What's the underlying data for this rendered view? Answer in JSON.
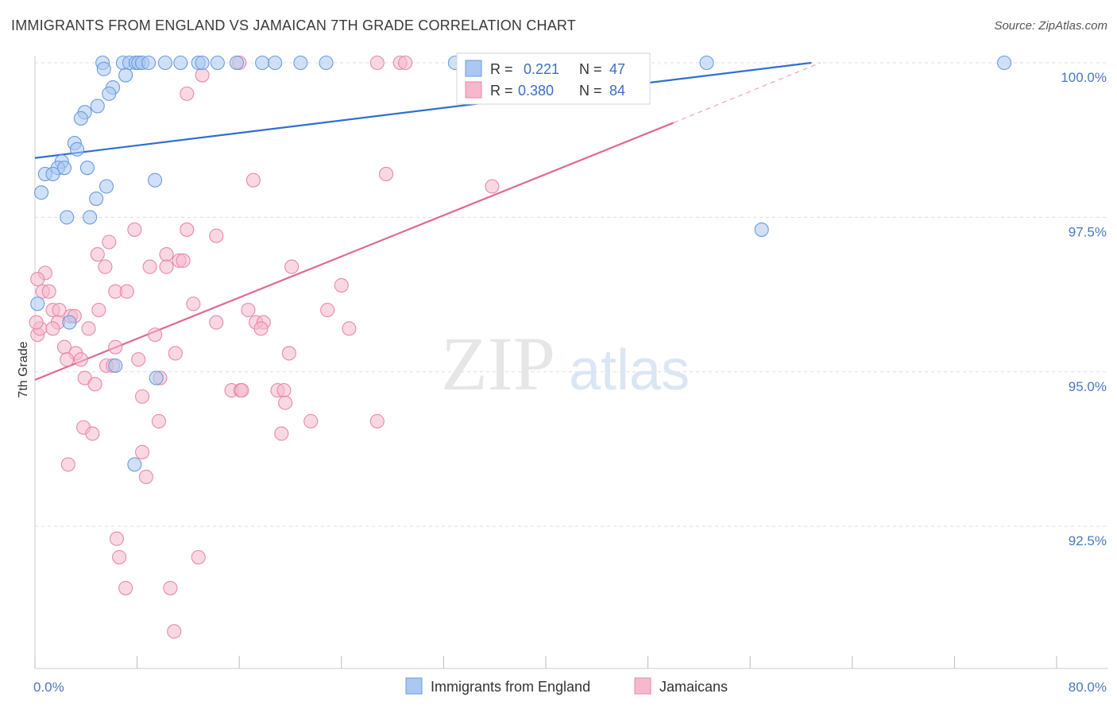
{
  "title": "IMMIGRANTS FROM ENGLAND VS JAMAICAN 7TH GRADE CORRELATION CHART",
  "source": "Source: ZipAtlas.com",
  "watermark": {
    "zip": "ZIP",
    "atlas": "atlas"
  },
  "colors": {
    "england_fill": "#aac8f0",
    "england_stroke": "#6a9be0",
    "england_line": "#2f6fd0",
    "jamaican_fill": "#f6b8cc",
    "jamaican_stroke": "#e889a8",
    "jamaican_line": "#e06890",
    "grid": "#dddddd",
    "tick_text": "#4a78c2"
  },
  "stats": [
    {
      "r_label": "R =",
      "r_value": "0.221",
      "n_label": "N =",
      "n_value": "47"
    },
    {
      "r_label": "R =",
      "r_value": "0.380",
      "n_label": "N =",
      "n_value": "84"
    }
  ],
  "legend": [
    "Immigrants from England",
    "Jamaicans"
  ],
  "chart_data": {
    "type": "scatter",
    "title": "IMMIGRANTS FROM ENGLAND VS JAMAICAN 7TH GRADE CORRELATION CHART",
    "xlabel": "",
    "ylabel": "7th Grade",
    "xlim": [
      0,
      80
    ],
    "ylim": [
      90.2,
      100.2
    ],
    "x_tick_labels": [
      "0.0%",
      "80.0%"
    ],
    "y_tick_labels": [
      "100.0%",
      "97.5%",
      "95.0%",
      "92.5%"
    ],
    "y_tick_values": [
      100.0,
      97.5,
      95.0,
      92.5
    ],
    "grid": true,
    "legend_position": "bottom-center",
    "series": [
      {
        "name": "Immigrants from England",
        "points": [
          [
            5.3,
            100.0
          ],
          [
            6.9,
            100.0
          ],
          [
            7.4,
            100.0
          ],
          [
            7.9,
            100.0
          ],
          [
            8.1,
            100.0
          ],
          [
            8.4,
            100.0
          ],
          [
            8.9,
            100.0
          ],
          [
            10.2,
            100.0
          ],
          [
            11.4,
            100.0
          ],
          [
            12.8,
            100.0
          ],
          [
            13.1,
            100.0
          ],
          [
            14.3,
            100.0
          ],
          [
            15.8,
            100.0
          ],
          [
            17.8,
            100.0
          ],
          [
            18.8,
            100.0
          ],
          [
            20.8,
            100.0
          ],
          [
            22.8,
            100.0
          ],
          [
            32.9,
            100.0
          ],
          [
            52.6,
            100.0
          ],
          [
            75.9,
            100.0
          ],
          [
            5.4,
            99.9
          ],
          [
            7.1,
            99.8
          ],
          [
            6.1,
            99.6
          ],
          [
            5.8,
            99.5
          ],
          [
            4.9,
            99.3
          ],
          [
            3.9,
            99.2
          ],
          [
            3.6,
            99.1
          ],
          [
            3.1,
            98.7
          ],
          [
            3.3,
            98.6
          ],
          [
            2.1,
            98.4
          ],
          [
            1.8,
            98.3
          ],
          [
            2.3,
            98.3
          ],
          [
            4.1,
            98.3
          ],
          [
            0.8,
            98.2
          ],
          [
            1.4,
            98.2
          ],
          [
            9.4,
            98.1
          ],
          [
            5.6,
            98.0
          ],
          [
            0.5,
            97.9
          ],
          [
            4.8,
            97.8
          ],
          [
            2.5,
            97.5
          ],
          [
            4.3,
            97.5
          ],
          [
            56.9,
            97.3
          ],
          [
            0.2,
            96.1
          ],
          [
            2.7,
            95.8
          ],
          [
            6.3,
            95.1
          ],
          [
            9.5,
            94.9
          ],
          [
            7.8,
            93.5
          ]
        ]
      },
      {
        "name": "Jamaicans",
        "points": [
          [
            16.0,
            100.0
          ],
          [
            26.8,
            100.0
          ],
          [
            28.6,
            100.0
          ],
          [
            29.0,
            100.0
          ],
          [
            42.8,
            100.0
          ],
          [
            13.1,
            99.8
          ],
          [
            11.9,
            99.5
          ],
          [
            27.5,
            98.2
          ],
          [
            17.1,
            98.1
          ],
          [
            35.8,
            98.0
          ],
          [
            7.8,
            97.3
          ],
          [
            11.9,
            97.3
          ],
          [
            14.2,
            97.2
          ],
          [
            5.8,
            97.1
          ],
          [
            4.9,
            96.9
          ],
          [
            10.3,
            96.9
          ],
          [
            11.3,
            96.8
          ],
          [
            5.5,
            96.7
          ],
          [
            9.0,
            96.7
          ],
          [
            10.3,
            96.7
          ],
          [
            11.6,
            96.8
          ],
          [
            20.1,
            96.7
          ],
          [
            0.8,
            96.6
          ],
          [
            0.2,
            96.5
          ],
          [
            6.3,
            96.3
          ],
          [
            7.2,
            96.3
          ],
          [
            24.0,
            96.4
          ],
          [
            0.6,
            96.3
          ],
          [
            1.1,
            96.3
          ],
          [
            12.4,
            96.1
          ],
          [
            1.4,
            96.0
          ],
          [
            1.9,
            96.0
          ],
          [
            5.0,
            96.0
          ],
          [
            16.7,
            96.0
          ],
          [
            22.9,
            96.0
          ],
          [
            2.8,
            95.9
          ],
          [
            3.1,
            95.9
          ],
          [
            1.8,
            95.8
          ],
          [
            14.2,
            95.8
          ],
          [
            17.3,
            95.8
          ],
          [
            17.9,
            95.8
          ],
          [
            17.7,
            95.7
          ],
          [
            4.2,
            95.7
          ],
          [
            24.6,
            95.7
          ],
          [
            0.2,
            95.6
          ],
          [
            0.4,
            95.7
          ],
          [
            1.4,
            95.7
          ],
          [
            9.4,
            95.6
          ],
          [
            2.3,
            95.4
          ],
          [
            6.3,
            95.4
          ],
          [
            3.2,
            95.3
          ],
          [
            11.0,
            95.3
          ],
          [
            19.9,
            95.3
          ],
          [
            8.1,
            95.2
          ],
          [
            2.5,
            95.2
          ],
          [
            3.6,
            95.2
          ],
          [
            5.6,
            95.1
          ],
          [
            6.1,
            95.1
          ],
          [
            3.9,
            94.9
          ],
          [
            9.8,
            94.9
          ],
          [
            4.7,
            94.8
          ],
          [
            15.4,
            94.7
          ],
          [
            16.1,
            94.7
          ],
          [
            16.2,
            94.7
          ],
          [
            19.0,
            94.7
          ],
          [
            19.5,
            94.7
          ],
          [
            8.4,
            94.6
          ],
          [
            19.6,
            94.5
          ],
          [
            9.7,
            94.2
          ],
          [
            21.6,
            94.2
          ],
          [
            26.8,
            94.2
          ],
          [
            3.8,
            94.1
          ],
          [
            4.5,
            94.0
          ],
          [
            19.3,
            94.0
          ],
          [
            8.4,
            93.7
          ],
          [
            2.6,
            93.5
          ],
          [
            8.7,
            93.3
          ],
          [
            6.4,
            92.3
          ],
          [
            6.6,
            92.0
          ],
          [
            12.8,
            92.0
          ],
          [
            7.1,
            91.5
          ],
          [
            10.6,
            91.5
          ],
          [
            10.9,
            90.8
          ],
          [
            0.1,
            95.8
          ]
        ]
      }
    ],
    "trend_lines": [
      {
        "series": "Immigrants from England",
        "x": [
          0,
          60.8
        ],
        "y": [
          98.46,
          100.0
        ]
      },
      {
        "series": "Jamaicans",
        "x": [
          0,
          50.0
        ],
        "y": [
          94.87,
          99.03
        ],
        "dashed_extension_to": [
          61.5,
          100.0
        ]
      }
    ]
  }
}
